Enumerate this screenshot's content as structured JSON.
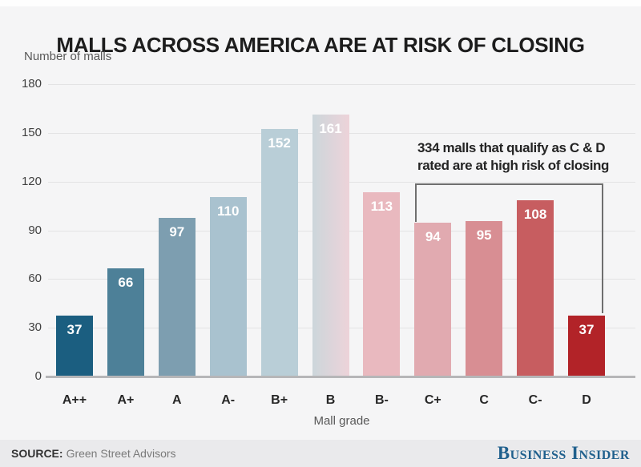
{
  "title": "MALLS ACROSS AMERICA ARE AT RISK OF CLOSING",
  "chart_data": {
    "type": "bar",
    "title": "MALLS ACROSS AMERICA ARE AT RISK OF CLOSING",
    "ylabel": "Number of malls",
    "xlabel": "Mall grade",
    "categories": [
      "A++",
      "A+",
      "A",
      "A-",
      "B+",
      "B",
      "B-",
      "C+",
      "C",
      "C-",
      "D"
    ],
    "values": [
      37,
      66,
      97,
      110,
      152,
      161,
      113,
      94,
      95,
      108,
      37
    ],
    "bar_colors": [
      "#1b5e80",
      "#4d8098",
      "#7d9eb0",
      "#a9c2cf",
      "#b9ced7",
      {
        "from": "#ccd6db",
        "to": "#edd3d9"
      },
      "#e9b9bf",
      "#e1aab0",
      "#d88e93",
      "#c75d60",
      "#b22328"
    ],
    "yticks": [
      0,
      30,
      60,
      90,
      120,
      150,
      180
    ],
    "ylim": [
      0,
      180
    ],
    "grid": true,
    "legend": "none",
    "annotation": {
      "text": "334 malls that qualify as C & D\nrated are at high risk of closing",
      "bracket_from": "C+",
      "bracket_to": "D"
    }
  },
  "footer": {
    "source_label": "SOURCE:",
    "source_value": "Green Street Advisors",
    "brand": "Business Insider"
  },
  "colors": {
    "background": "#f5f5f6",
    "footer_background": "#eaeaec",
    "brand_blue": "#20608d",
    "dark_red": "#b22328",
    "dark_blue": "#1b5e80"
  }
}
